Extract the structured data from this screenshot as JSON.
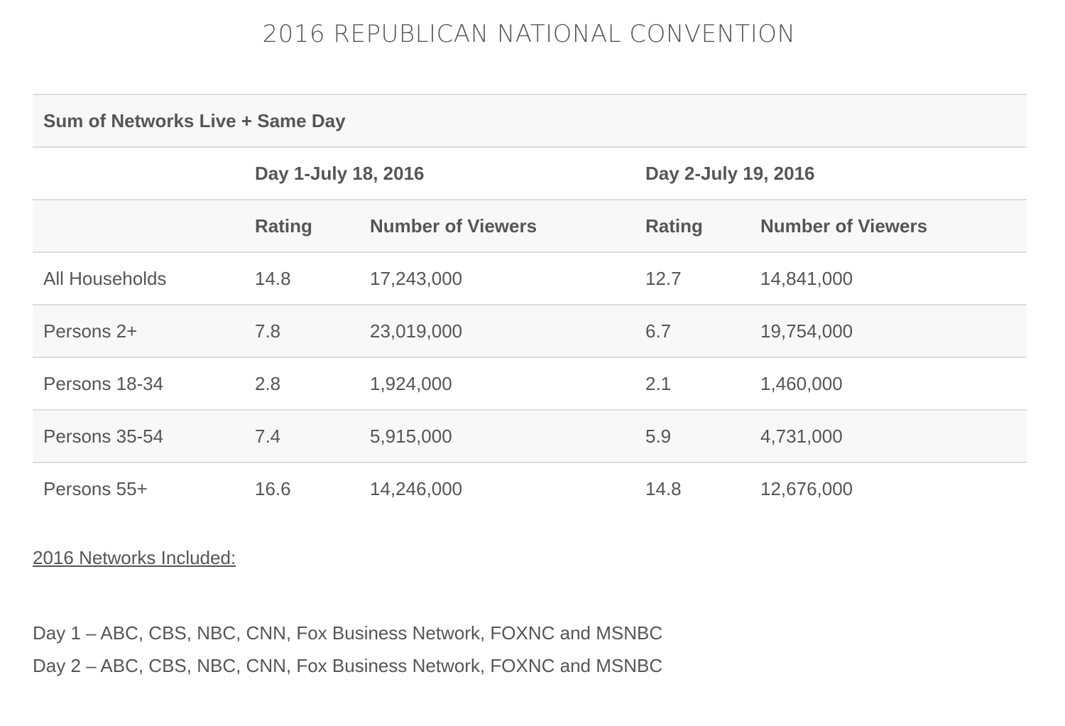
{
  "title": "2016 REPUBLICAN NATIONAL CONVENTION",
  "table": {
    "caption": "Sum of Networks Live + Same Day",
    "day_headers": [
      "Day 1-July 18, 2016",
      "Day 2-July 19, 2016"
    ],
    "column_headers": [
      "Rating",
      "Number of Viewers",
      "Rating",
      "Number of Viewers"
    ],
    "rows": [
      {
        "label": "All Households",
        "day1_rating": "14.8",
        "day1_viewers": "17,243,000",
        "day2_rating": "12.7",
        "day2_viewers": "14,841,000"
      },
      {
        "label": "Persons 2+",
        "day1_rating": "7.8",
        "day1_viewers": "23,019,000",
        "day2_rating": "6.7",
        "day2_viewers": "19,754,000"
      },
      {
        "label": "Persons 18-34",
        "day1_rating": "2.8",
        "day1_viewers": "1,924,000",
        "day2_rating": "2.1",
        "day2_viewers": "1,460,000"
      },
      {
        "label": "Persons 35-54",
        "day1_rating": "7.4",
        "day1_viewers": "5,915,000",
        "day2_rating": "5.9",
        "day2_viewers": "4,731,000"
      },
      {
        "label": "Persons 55+",
        "day1_rating": "16.6",
        "day1_viewers": "14,246,000",
        "day2_rating": "14.8",
        "day2_viewers": "12,676,000"
      }
    ]
  },
  "networks": {
    "heading": "2016 Networks Included:",
    "lines": [
      "Day 1 – ABC, CBS, NBC, CNN, Fox Business Network, FOXNC and MSNBC",
      "Day 2 – ABC, CBS, NBC, CNN, Fox Business Network, FOXNC and MSNBC"
    ]
  }
}
